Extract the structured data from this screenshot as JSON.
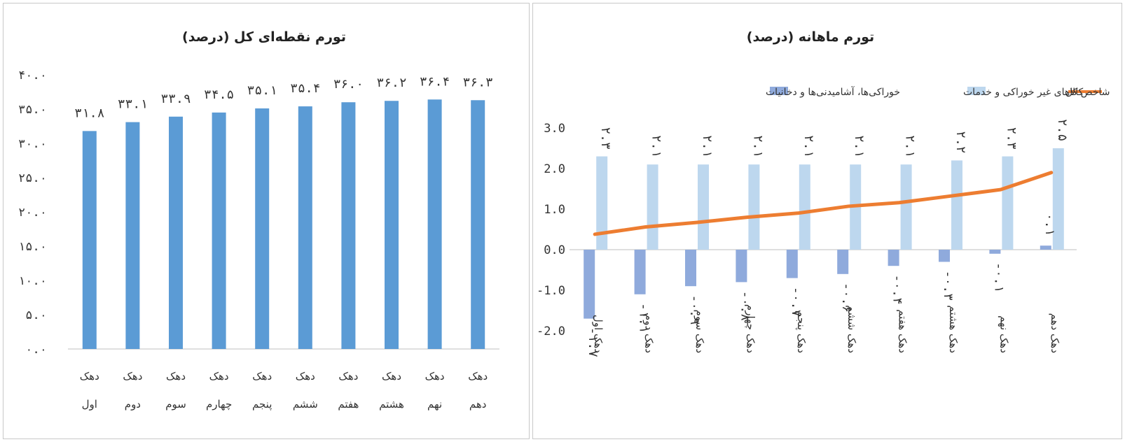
{
  "colors": {
    "bar_left": "#5b9bd5",
    "bar_nonfood": "#bdd7ee",
    "bar_food": "#8faadc",
    "line_total": "#ed7d31",
    "axis": "#bfbfbf"
  },
  "chart_data": [
    {
      "type": "bar",
      "title": "تورم نقطه‌ای کل (درصد)",
      "categories": [
        [
          "دهک",
          "اول"
        ],
        [
          "دهک",
          "دوم"
        ],
        [
          "دهک",
          "سوم"
        ],
        [
          "دهک",
          "چهارم"
        ],
        [
          "دهک",
          "پنجم"
        ],
        [
          "دهک",
          "ششم"
        ],
        [
          "دهک",
          "هفتم"
        ],
        [
          "دهک",
          "هشتم"
        ],
        [
          "دهک",
          "نهم"
        ],
        [
          "دهک",
          "دهم"
        ]
      ],
      "values": [
        31.8,
        33.1,
        33.9,
        34.5,
        35.1,
        35.4,
        36.0,
        36.2,
        36.4,
        36.3
      ],
      "data_labels": [
        "۳۱.۸",
        "۳۳.۱",
        "۳۳.۹",
        "۳۴.۵",
        "۳۵.۱",
        "۳۵.۴",
        "۳۶.۰",
        "۳۶.۲",
        "۳۶.۴",
        "۳۶.۳"
      ],
      "ylim": [
        0,
        40
      ],
      "yticks": [
        "۰.۰",
        "۵.۰",
        "۱۰.۰",
        "۱۵.۰",
        "۲۰.۰",
        "۲۵.۰",
        "۳۰.۰",
        "۳۵.۰",
        "۴۰.۰"
      ],
      "grid": false
    },
    {
      "type": "bar+line",
      "title": "تورم ماهانه (درصد)",
      "categories": [
        "دهک اول",
        "دهک دوم",
        "دهک سوم",
        "دهک چهارم",
        "دهک پنجم",
        "دهک ششم",
        "دهک هفتم",
        "دهک هشتم",
        "دهک نهم",
        "دهک دهم"
      ],
      "series": [
        {
          "name": "شاخص کل",
          "kind": "line",
          "values": [
            0.38,
            0.56,
            0.67,
            0.8,
            0.9,
            1.07,
            1.16,
            1.32,
            1.48,
            1.9
          ]
        },
        {
          "name": "کالاهای غیر خوراکی و خدمات",
          "kind": "bar",
          "values": [
            2.3,
            2.1,
            2.1,
            2.1,
            2.1,
            2.1,
            2.1,
            2.2,
            2.3,
            2.5
          ],
          "data_labels": [
            "۲.۳",
            "۲.۱",
            "۲.۱",
            "۲.۱",
            "۲.۱",
            "۲.۱",
            "۲.۱",
            "۲.۲",
            "۲.۳",
            "۲.۵"
          ]
        },
        {
          "name": "خوراکی‌ها، آشامیدنی‌ها و دخانیات",
          "kind": "bar",
          "values": [
            -1.7,
            -1.1,
            -0.9,
            -0.8,
            -0.7,
            -0.6,
            -0.4,
            -0.3,
            -0.1,
            0.1
          ],
          "data_labels": [
            "-۱.۷",
            "-۱.۱",
            "-۰.۹",
            "-۰.۸",
            "-۰.۷",
            "-۰.۶",
            "-۰.۴",
            "-۰.۳",
            "-۰.۱",
            "۰.۱"
          ]
        }
      ],
      "ylim": [
        -2,
        3
      ],
      "yticks": [
        "-2.0",
        "-1.0",
        "0.0",
        "1.0",
        "2.0",
        "3.0"
      ],
      "legend_position": "top",
      "grid": false
    }
  ]
}
